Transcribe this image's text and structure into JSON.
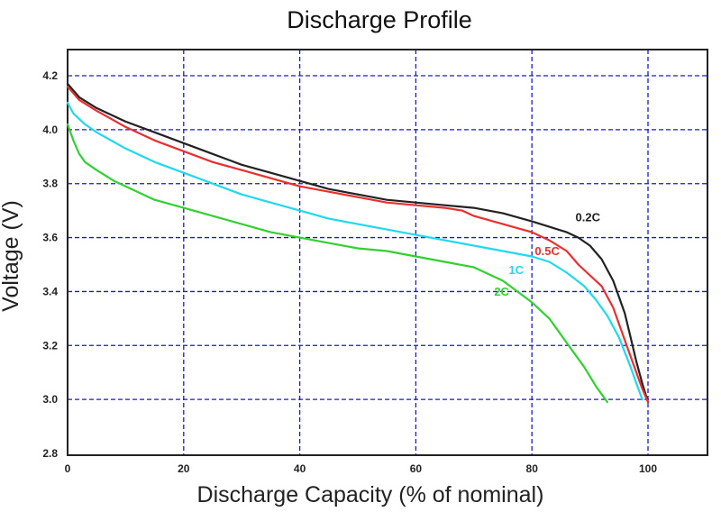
{
  "chart_data": {
    "type": "line",
    "title": "Discharge Profile",
    "xlabel": "Discharge Capacity (% of nominal)",
    "ylabel": "Voltage (V)",
    "xlim": [
      0,
      110
    ],
    "ylim": [
      2.8,
      4.25
    ],
    "xticks": [
      0,
      20,
      40,
      60,
      80,
      100
    ],
    "xtick_labels": [
      "0",
      "20",
      "40",
      "60",
      "80",
      "100"
    ],
    "yticks": [
      2.8,
      3.0,
      3.2,
      3.4,
      3.6,
      3.8,
      4.0,
      4.2
    ],
    "ytick_labels": [
      "2.8",
      "3.0",
      "3.2",
      "3.4",
      "3.6",
      "3.8",
      "4.0",
      "4.2"
    ],
    "grid": true,
    "colors": {
      "grid": "#1a1ad0",
      "axis": "#222222"
    },
    "series": [
      {
        "name": "0.2C",
        "color": "#222222",
        "x": [
          0,
          2,
          5,
          10,
          15,
          20,
          25,
          30,
          35,
          40,
          45,
          50,
          55,
          60,
          65,
          70,
          75,
          80,
          83,
          86,
          88,
          90,
          92,
          94,
          96,
          97,
          98,
          99,
          100
        ],
        "y": [
          4.17,
          4.12,
          4.08,
          4.03,
          3.99,
          3.95,
          3.91,
          3.87,
          3.84,
          3.81,
          3.78,
          3.76,
          3.74,
          3.73,
          3.72,
          3.71,
          3.69,
          3.66,
          3.64,
          3.62,
          3.6,
          3.57,
          3.52,
          3.44,
          3.32,
          3.23,
          3.14,
          3.06,
          2.99
        ]
      },
      {
        "name": "0.5C",
        "color": "#e83030",
        "x": [
          0,
          2,
          5,
          10,
          15,
          20,
          25,
          30,
          35,
          40,
          45,
          50,
          55,
          60,
          65,
          68,
          70,
          75,
          80,
          83,
          86,
          88,
          90,
          92,
          94,
          96,
          98,
          99,
          100
        ],
        "y": [
          4.16,
          4.11,
          4.07,
          4.01,
          3.96,
          3.92,
          3.88,
          3.85,
          3.82,
          3.79,
          3.77,
          3.75,
          3.73,
          3.72,
          3.71,
          3.7,
          3.68,
          3.65,
          3.62,
          3.59,
          3.55,
          3.5,
          3.46,
          3.42,
          3.34,
          3.22,
          3.1,
          3.04,
          2.99
        ]
      },
      {
        "name": "1C",
        "color": "#22d8f0",
        "x": [
          0,
          1,
          3,
          5,
          10,
          15,
          20,
          25,
          30,
          35,
          40,
          45,
          50,
          55,
          60,
          65,
          70,
          75,
          80,
          83,
          86,
          89,
          91,
          93,
          95,
          97,
          98,
          99
        ],
        "y": [
          4.1,
          4.06,
          4.02,
          3.99,
          3.93,
          3.88,
          3.84,
          3.8,
          3.76,
          3.73,
          3.7,
          3.67,
          3.65,
          3.63,
          3.61,
          3.59,
          3.57,
          3.55,
          3.53,
          3.51,
          3.47,
          3.42,
          3.37,
          3.31,
          3.23,
          3.12,
          3.06,
          3.0
        ]
      },
      {
        "name": "2C",
        "color": "#33d033",
        "x": [
          0,
          1,
          2,
          3,
          5,
          8,
          10,
          15,
          20,
          25,
          30,
          35,
          40,
          45,
          50,
          55,
          60,
          65,
          70,
          75,
          80,
          83,
          85,
          87,
          89,
          91,
          93
        ],
        "y": [
          4.02,
          3.96,
          3.91,
          3.88,
          3.85,
          3.81,
          3.79,
          3.74,
          3.71,
          3.68,
          3.65,
          3.62,
          3.6,
          3.58,
          3.56,
          3.55,
          3.53,
          3.51,
          3.49,
          3.44,
          3.36,
          3.3,
          3.24,
          3.18,
          3.12,
          3.05,
          2.99
        ]
      }
    ],
    "annotations": [
      {
        "text": "0.2C",
        "x": 87.5,
        "y": 3.66,
        "color": "#222222"
      },
      {
        "text": "0.5C",
        "x": 80.5,
        "y": 3.535,
        "color": "#e83030"
      },
      {
        "text": "1C",
        "x": 76,
        "y": 3.465,
        "color": "#22d8f0"
      },
      {
        "text": "2C",
        "x": 73.5,
        "y": 3.385,
        "color": "#33d033"
      }
    ]
  }
}
